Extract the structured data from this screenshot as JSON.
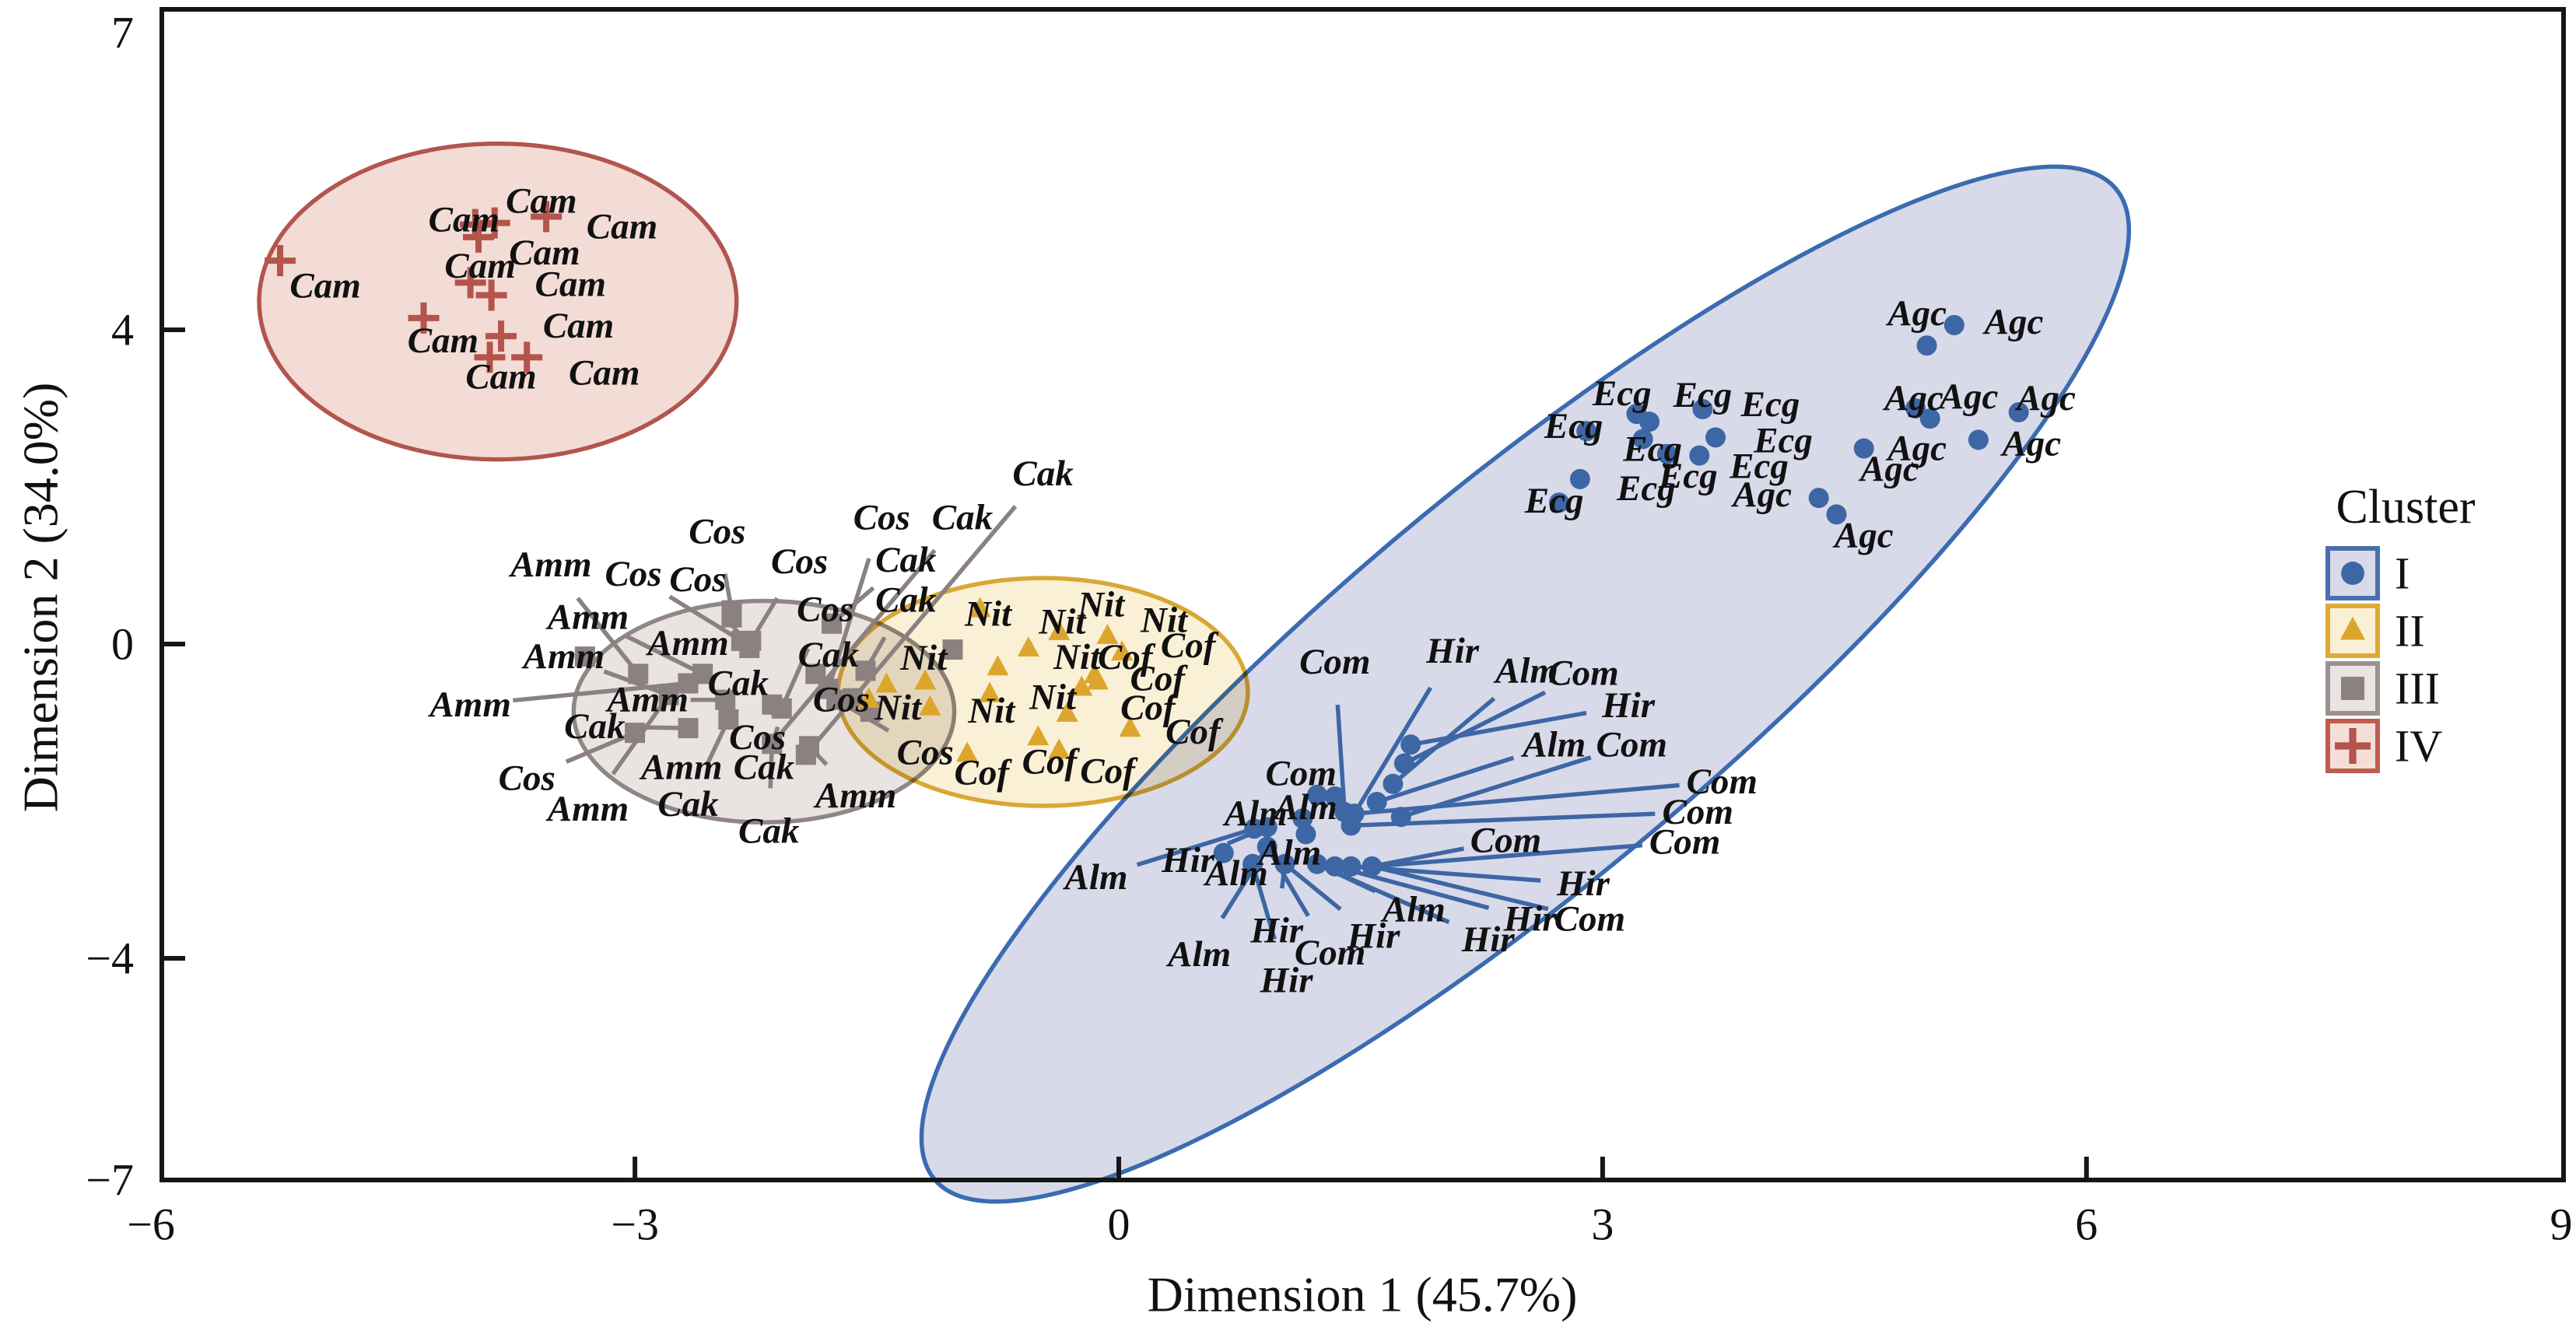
{
  "chart_data": {
    "type": "scatter",
    "title": "",
    "xlabel": "Dimension 1 (45.7%)",
    "ylabel": "Dimension 2 (34.0%)",
    "xlim": [
      -6,
      9
    ],
    "ylim": [
      -7,
      7
    ],
    "xticks": [
      -6,
      -3,
      0,
      3,
      6,
      9
    ],
    "yticks": [
      7,
      4,
      0,
      -4,
      -7
    ],
    "grid": false,
    "legend": {
      "title": "Cluster",
      "position": "right",
      "entries": [
        {
          "label": "I",
          "marker": "circle",
          "color": "#3d66a5",
          "fill": "#d8daea",
          "border": "#4a6fae"
        },
        {
          "label": "II",
          "marker": "triangle",
          "color": "#dca62d",
          "fill": "#faf0d6",
          "border": "#dfaa33"
        },
        {
          "label": "III",
          "marker": "square",
          "color": "#8a8180",
          "fill": "#e9e3e1",
          "border": "#9a9190"
        },
        {
          "label": "IV",
          "marker": "cross",
          "color": "#b5544c",
          "fill": "#f5ded8",
          "border": "#c05b50"
        }
      ]
    },
    "clusters": [
      {
        "id": "IV",
        "marker": "cross",
        "color": "#b5544c",
        "stroke": "#b2554e",
        "fill": "#f2dcd5",
        "ellipse": {
          "cx": -3.85,
          "cy": 4.36,
          "rx": 1.48,
          "ry": 2.01,
          "rot": 0
        },
        "points": [
          [
            -5.2,
            4.88
          ],
          [
            -3.99,
            5.34
          ],
          [
            -3.87,
            5.36
          ],
          [
            -3.97,
            5.18
          ],
          [
            -3.55,
            5.44
          ],
          [
            -4.02,
            4.6
          ],
          [
            -3.89,
            4.44
          ],
          [
            -4.31,
            4.15
          ],
          [
            -3.83,
            3.92
          ],
          [
            -3.9,
            3.65
          ],
          [
            -3.67,
            3.65
          ]
        ],
        "labels": [
          [
            "Cam",
            -4.92,
            4.56
          ],
          [
            "Cam",
            -3.58,
            5.64
          ],
          [
            "Cam",
            -4.06,
            5.4
          ],
          [
            "Cam",
            -3.08,
            5.31
          ],
          [
            "Cam",
            -3.56,
            4.98
          ],
          [
            "Cam",
            -3.96,
            4.81
          ],
          [
            "Cam",
            -3.4,
            4.58
          ],
          [
            "Cam",
            -4.19,
            3.86
          ],
          [
            "Cam",
            -3.35,
            4.05
          ],
          [
            "Cam",
            -3.83,
            3.4
          ],
          [
            "Cam",
            -3.19,
            3.45
          ]
        ],
        "callouts": []
      },
      {
        "id": "III",
        "marker": "square",
        "color": "#8a8180",
        "stroke": "#8f8786",
        "fill": "#e9e3e1",
        "ellipse": {
          "cx": -2.2,
          "cy": -0.86,
          "rx": 1.18,
          "ry": 1.41,
          "rot": 0
        },
        "points": [
          [
            -3.31,
            -0.16
          ],
          [
            -2.98,
            -0.38
          ],
          [
            -2.4,
            0.43
          ],
          [
            -2.34,
            0.04
          ],
          [
            -2.29,
            -0.05
          ],
          [
            -2.58,
            -0.38
          ],
          [
            -2.67,
            -0.5
          ],
          [
            -2.79,
            -0.65
          ],
          [
            -2.44,
            -0.71
          ],
          [
            -2.15,
            -0.77
          ],
          [
            -2.09,
            -0.82
          ],
          [
            -2.42,
            -0.96
          ],
          [
            -2.67,
            -1.07
          ],
          [
            -3.0,
            -1.13
          ],
          [
            -2.15,
            -1.27
          ],
          [
            -1.92,
            -1.3
          ],
          [
            -1.88,
            -0.38
          ],
          [
            -1.8,
            -0.57
          ],
          [
            -1.75,
            -0.71
          ],
          [
            -1.94,
            -1.41
          ],
          [
            -2.4,
            0.34
          ],
          [
            -2.28,
            0.04
          ],
          [
            -1.78,
            0.26
          ],
          [
            -1.03,
            -0.07
          ],
          [
            -1.65,
            -0.69
          ],
          [
            -1.54,
            -0.86
          ],
          [
            -1.57,
            -0.34
          ]
        ],
        "labels": [
          [
            "Amm",
            -2.67,
            0.01
          ],
          [
            "Cak",
            -2.36,
            -0.5
          ],
          [
            "Cos",
            -2.24,
            -1.19
          ],
          [
            "Cos",
            -1.72,
            -0.71
          ],
          [
            "Cak",
            -1.8,
            -0.14
          ]
        ],
        "callouts": [
          [
            "Amm",
            -3.52,
            1.01,
            -2.98,
            -0.38
          ],
          [
            "Cos",
            -3.01,
            0.89,
            -2.34,
            0.04
          ],
          [
            "Cos",
            -2.61,
            0.82,
            -2.29,
            -0.05
          ],
          [
            "Cos",
            -2.49,
            1.43,
            -2.4,
            0.43
          ],
          [
            "Cos",
            -1.98,
            1.05,
            -2.28,
            0.04
          ],
          [
            "Cos",
            -1.47,
            1.61,
            -1.8,
            -0.57
          ],
          [
            "Cak",
            -0.97,
            1.61,
            -2.15,
            -1.27
          ],
          [
            "Cak",
            -0.47,
            2.17,
            -1.94,
            -1.41
          ],
          [
            "Cak",
            -1.32,
            1.07,
            -1.78,
            0.26
          ],
          [
            "Cak",
            -1.32,
            0.56,
            -1.57,
            -0.34
          ],
          [
            "Cos",
            -1.82,
            0.44,
            -2.09,
            -0.82
          ],
          [
            "Amm",
            -3.29,
            0.34,
            -2.58,
            -0.38
          ],
          [
            "Amm",
            -3.44,
            -0.16,
            -2.79,
            -0.65
          ],
          [
            "Amm",
            -4.02,
            -0.77,
            -2.67,
            -0.5
          ],
          [
            "Amm",
            -2.92,
            -0.71,
            -2.44,
            -0.71
          ],
          [
            "Cak",
            -3.25,
            -1.05,
            -2.67,
            -1.07
          ],
          [
            "Cos",
            -3.67,
            -1.71,
            -3.0,
            -1.13
          ],
          [
            "Amm",
            -3.29,
            -2.1,
            -2.79,
            -0.65
          ],
          [
            "Cak",
            -2.67,
            -2.04,
            -2.42,
            -0.96
          ],
          [
            "Amm",
            -2.71,
            -1.57,
            -2.67,
            -1.07
          ],
          [
            "Cak",
            -2.2,
            -1.57,
            -2.15,
            -1.27
          ],
          [
            "Cak",
            -2.17,
            -2.38,
            -2.15,
            -1.27
          ],
          [
            "Cos",
            -1.2,
            -1.38,
            -1.75,
            -0.71
          ],
          [
            "Amm",
            -1.63,
            -1.93,
            -1.92,
            -1.3
          ]
        ]
      },
      {
        "id": "II",
        "marker": "triangle",
        "color": "#dca62d",
        "stroke": "#d9a733",
        "fill": "#faf0d6",
        "ellipse": {
          "cx": -0.47,
          "cy": -0.61,
          "rx": 1.27,
          "ry": 1.45,
          "rot": 0
        },
        "points": [
          [
            -0.86,
            0.44
          ],
          [
            -0.37,
            0.15
          ],
          [
            -0.07,
            0.1
          ],
          [
            -0.56,
            -0.06
          ],
          [
            -0.75,
            -0.3
          ],
          [
            -0.8,
            -0.64
          ],
          [
            -1.17,
            -0.81
          ],
          [
            -1.44,
            -0.52
          ],
          [
            -1.55,
            -0.71
          ],
          [
            -1.2,
            -0.48
          ],
          [
            0.02,
            -0.11
          ],
          [
            -0.15,
            -0.4
          ],
          [
            -0.13,
            -0.48
          ],
          [
            -0.23,
            -0.56
          ],
          [
            -0.32,
            -0.89
          ],
          [
            0.07,
            -1.08
          ],
          [
            -0.5,
            -1.19
          ],
          [
            -0.37,
            -1.36
          ],
          [
            -0.94,
            -1.4
          ]
        ],
        "labels": [
          [
            "Nit",
            -0.81,
            0.38
          ],
          [
            "Nit",
            -0.35,
            0.28
          ],
          [
            "Nit",
            -0.11,
            0.5
          ],
          [
            "Nit",
            0.28,
            0.3
          ],
          [
            "Nit",
            -1.21,
            -0.18
          ],
          [
            "Nit",
            -0.26,
            -0.17
          ],
          [
            "Nit",
            -0.41,
            -0.68
          ],
          [
            "Nit",
            -0.79,
            -0.85
          ],
          [
            "Nit",
            -1.37,
            -0.81
          ],
          [
            "Cof",
            0.43,
            -0.02
          ],
          [
            "Cof",
            0.24,
            -0.44
          ],
          [
            "Cof",
            0.18,
            -0.81
          ],
          [
            "Cof",
            0.04,
            -0.17
          ],
          [
            "Cof",
            0.46,
            -1.12
          ],
          [
            "Cof",
            -0.07,
            -1.62
          ],
          [
            "Cof",
            -0.43,
            -1.5
          ],
          [
            "Cof",
            -0.85,
            -1.64
          ]
        ],
        "callouts": []
      },
      {
        "id": "I",
        "marker": "circle",
        "color": "#3d66a5",
        "stroke": "#3b6bb0",
        "fill": "#d8daea",
        "ellipse": {
          "cx": 2.52,
          "cy": -0.51,
          "rx": 4.78,
          "ry": 2.48,
          "rot": -40
        },
        "points": [
          [
            3.21,
            2.93
          ],
          [
            3.62,
            2.99
          ],
          [
            3.29,
            2.83
          ],
          [
            3.25,
            2.61
          ],
          [
            2.9,
            2.71
          ],
          [
            3.7,
            2.63
          ],
          [
            3.4,
            2.42
          ],
          [
            3.6,
            2.4
          ],
          [
            2.86,
            2.1
          ],
          [
            2.73,
            1.8
          ],
          [
            5.01,
            3.8
          ],
          [
            5.18,
            4.06
          ],
          [
            4.94,
            3.0
          ],
          [
            5.03,
            2.87
          ],
          [
            5.58,
            2.95
          ],
          [
            5.33,
            2.6
          ],
          [
            4.62,
            2.49
          ],
          [
            4.34,
            1.86
          ],
          [
            4.45,
            1.65
          ],
          [
            1.23,
            -1.92
          ],
          [
            1.34,
            -1.94
          ],
          [
            1.4,
            -2.14
          ],
          [
            1.46,
            -2.16
          ],
          [
            1.75,
            -2.2
          ],
          [
            1.44,
            -2.31
          ],
          [
            1.14,
            -2.22
          ],
          [
            1.16,
            -2.42
          ],
          [
            0.92,
            -2.58
          ],
          [
            0.83,
            -2.8
          ],
          [
            1.03,
            -2.8
          ],
          [
            1.23,
            -2.8
          ],
          [
            1.34,
            -2.83
          ],
          [
            1.44,
            -2.83
          ],
          [
            1.57,
            -2.83
          ],
          [
            0.84,
            -2.35
          ],
          [
            0.92,
            -2.33
          ],
          [
            0.65,
            -2.66
          ],
          [
            1.81,
            -1.28
          ],
          [
            1.77,
            -1.52
          ],
          [
            1.7,
            -1.78
          ],
          [
            1.6,
            -2.01
          ]
        ],
        "labels": [
          [
            "Ecg",
            3.12,
            3.19
          ],
          [
            "Ecg",
            3.62,
            3.17
          ],
          [
            "Ecg",
            4.04,
            3.05
          ],
          [
            "Ecg",
            2.82,
            2.77
          ],
          [
            "Ecg",
            4.12,
            2.59
          ],
          [
            "Ecg",
            3.31,
            2.48
          ],
          [
            "Ecg",
            3.97,
            2.26
          ],
          [
            "Ecg",
            3.53,
            2.14
          ],
          [
            "Ecg",
            3.27,
            1.98
          ],
          [
            "Ecg",
            2.7,
            1.82
          ],
          [
            "Agc",
            4.95,
            4.21
          ],
          [
            "Agc",
            5.55,
            4.1
          ],
          [
            "Agc",
            5.27,
            3.15
          ],
          [
            "Agc",
            5.75,
            3.13
          ],
          [
            "Agc",
            4.93,
            3.13
          ],
          [
            "Agc",
            5.66,
            2.55
          ],
          [
            "Agc",
            4.95,
            2.49
          ],
          [
            "Agc",
            4.78,
            2.23
          ],
          [
            "Agc",
            3.99,
            1.9
          ],
          [
            "Agc",
            4.62,
            1.38
          ],
          [
            "Alm",
            0.85,
            -2.16
          ],
          [
            "Alm",
            1.16,
            -2.08
          ],
          [
            "Alm",
            1.06,
            -2.66
          ],
          [
            "Alm",
            0.73,
            -2.92
          ]
        ],
        "callouts": [
          [
            "Com",
            1.34,
            -0.23,
            1.4,
            -2.14
          ],
          [
            "Hir",
            2.07,
            -0.09,
            1.46,
            -2.16
          ],
          [
            "Alm",
            2.53,
            -0.34,
            1.7,
            -1.78
          ],
          [
            "Com",
            2.88,
            -0.37,
            1.77,
            -1.52
          ],
          [
            "Hir",
            3.16,
            -0.78,
            1.81,
            -1.28
          ],
          [
            "Alm",
            2.7,
            -1.28,
            1.6,
            -2.01
          ],
          [
            "Com",
            3.18,
            -1.28,
            1.75,
            -2.2
          ],
          [
            "Com",
            3.74,
            -1.75,
            1.46,
            -2.16
          ],
          [
            "Com",
            3.59,
            -2.14,
            1.44,
            -2.31
          ],
          [
            "Com",
            3.51,
            -2.52,
            1.57,
            -2.83
          ],
          [
            "Com",
            2.4,
            -2.5,
            1.57,
            -2.83
          ],
          [
            "Hir",
            2.88,
            -3.05,
            1.44,
            -2.83
          ],
          [
            "Hir",
            2.55,
            -3.5,
            1.34,
            -2.83
          ],
          [
            "Com",
            2.92,
            -3.5,
            1.57,
            -2.83
          ],
          [
            "Hir",
            2.29,
            -3.76,
            1.23,
            -2.8
          ],
          [
            "Alm",
            1.83,
            -3.38,
            1.23,
            -2.8
          ],
          [
            "Hir",
            1.58,
            -3.72,
            1.03,
            -2.8
          ],
          [
            "Com",
            1.31,
            -3.93,
            0.92,
            -2.58
          ],
          [
            "Hir",
            1.04,
            -4.28,
            0.83,
            -2.8
          ],
          [
            "Alm",
            0.5,
            -3.95,
            0.92,
            -2.58
          ],
          [
            "Hir",
            0.98,
            -3.65,
            1.03,
            -2.8
          ],
          [
            "Alm",
            -0.14,
            -2.97,
            0.84,
            -2.35
          ],
          [
            "Hir",
            0.43,
            -2.75,
            0.92,
            -2.33
          ],
          [
            "Com",
            1.13,
            -1.65,
            1.23,
            -1.92
          ]
        ]
      }
    ]
  }
}
